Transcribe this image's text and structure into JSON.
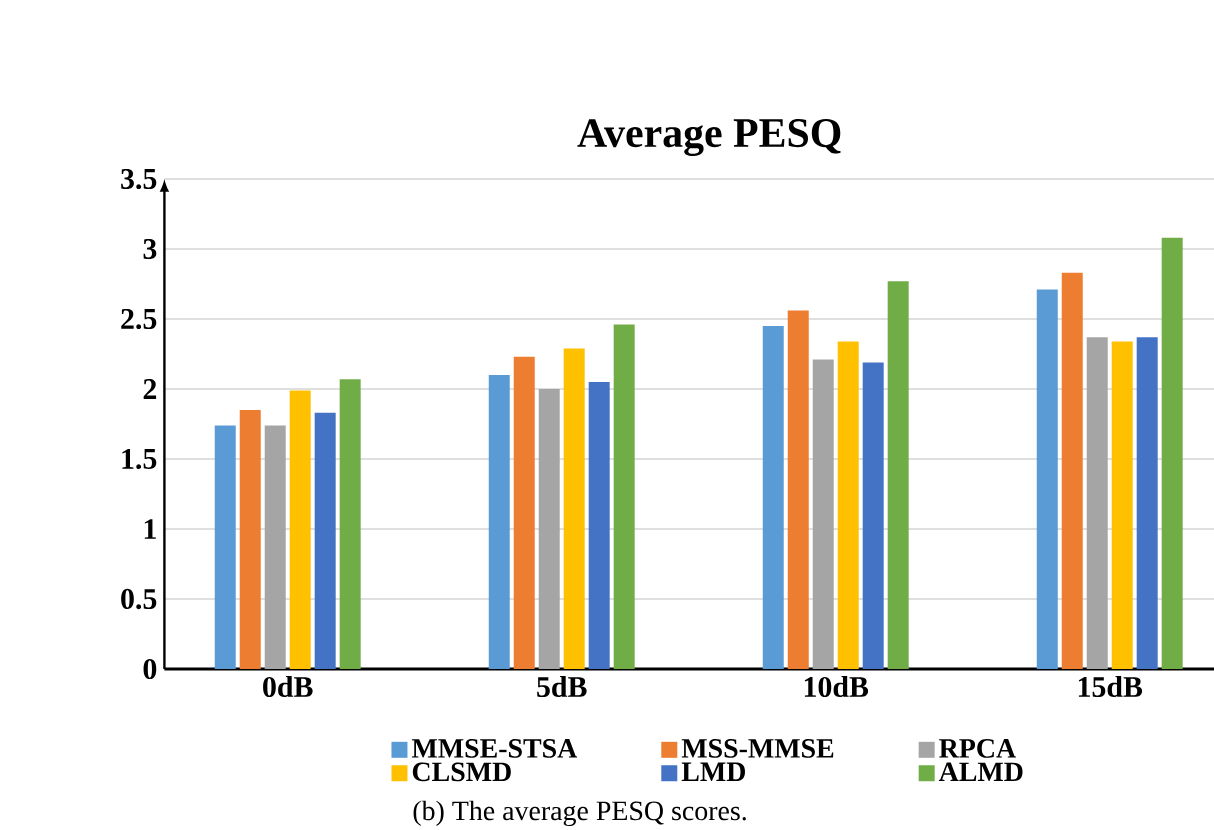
{
  "chart_data": {
    "type": "bar",
    "title": "Average PESQ",
    "categories": [
      "0dB",
      "5dB",
      "10dB",
      "15dB"
    ],
    "series": [
      {
        "name": "MMSE-STSA",
        "color": "#5b9bd5",
        "values": [
          1.74,
          2.1,
          2.45,
          2.71
        ]
      },
      {
        "name": "MSS-MMSE",
        "color": "#ed7d31",
        "values": [
          1.85,
          2.23,
          2.56,
          2.83
        ]
      },
      {
        "name": "RPCA",
        "color": "#a5a5a5",
        "values": [
          1.74,
          2.0,
          2.21,
          2.37
        ]
      },
      {
        "name": "CLSMD",
        "color": "#ffc000",
        "values": [
          1.99,
          2.29,
          2.34,
          2.34
        ]
      },
      {
        "name": "LMD",
        "color": "#4472c4",
        "values": [
          1.83,
          2.05,
          2.19,
          2.37
        ]
      },
      {
        "name": "ALMD",
        "color": "#70ad47",
        "values": [
          2.07,
          2.46,
          2.77,
          3.08
        ]
      }
    ],
    "ylim": [
      0,
      3.5
    ],
    "yticks": [
      0,
      0.5,
      1,
      1.5,
      2,
      2.5,
      3,
      3.5
    ],
    "grid": "y",
    "legend": "bottom",
    "annotations": [
      "(b)  The average PESQ scores."
    ]
  }
}
